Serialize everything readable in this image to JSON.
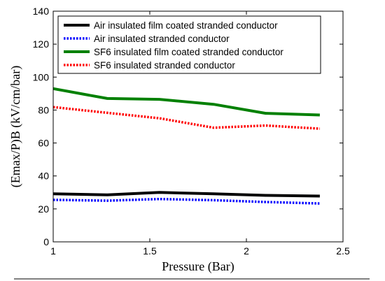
{
  "chart_data": {
    "type": "line",
    "xlabel": "Pressure (Bar)",
    "ylabel": "(Emax/P)B (kV/cm/bar)",
    "xlim": [
      1,
      2.5
    ],
    "ylim": [
      0,
      140
    ],
    "xticks": [
      1,
      1.5,
      2,
      2.5
    ],
    "xtick_labels": [
      "1",
      "1.5",
      "2",
      "2.5"
    ],
    "yticks": [
      0,
      20,
      40,
      60,
      80,
      100,
      120,
      140
    ],
    "ytick_labels": [
      "0",
      "20",
      "40",
      "60",
      "80",
      "100",
      "120",
      "140"
    ],
    "grid": false,
    "legend_position": "top-left",
    "series": [
      {
        "name": "Air insulated film coated stranded conductor",
        "color": "#000000",
        "dash": "solid",
        "x": [
          1,
          1.28,
          1.55,
          1.83,
          2.1,
          2.38
        ],
        "y": [
          29.2,
          28.5,
          30.0,
          29.2,
          28.2,
          27.8
        ]
      },
      {
        "name": "Air insulated stranded conductor",
        "color": "#0000ff",
        "dash": "dotted",
        "x": [
          1,
          1.28,
          1.55,
          1.83,
          2.1,
          2.38
        ],
        "y": [
          25.5,
          25.0,
          26.0,
          25.3,
          24.2,
          23.3
        ]
      },
      {
        "name": "SF6 insulated film coated stranded conductor",
        "color": "#008000",
        "dash": "solid",
        "x": [
          1,
          1.28,
          1.55,
          1.83,
          2.1,
          2.38
        ],
        "y": [
          93.0,
          87.0,
          86.5,
          83.5,
          78.0,
          77.0
        ]
      },
      {
        "name": "SF6 insulated stranded conductor",
        "color": "#ff0000",
        "dash": "dotted",
        "x": [
          1,
          1.28,
          1.55,
          1.83,
          2.1,
          2.38
        ],
        "y": [
          81.8,
          78.3,
          75.0,
          69.3,
          70.6,
          68.7
        ]
      }
    ]
  }
}
